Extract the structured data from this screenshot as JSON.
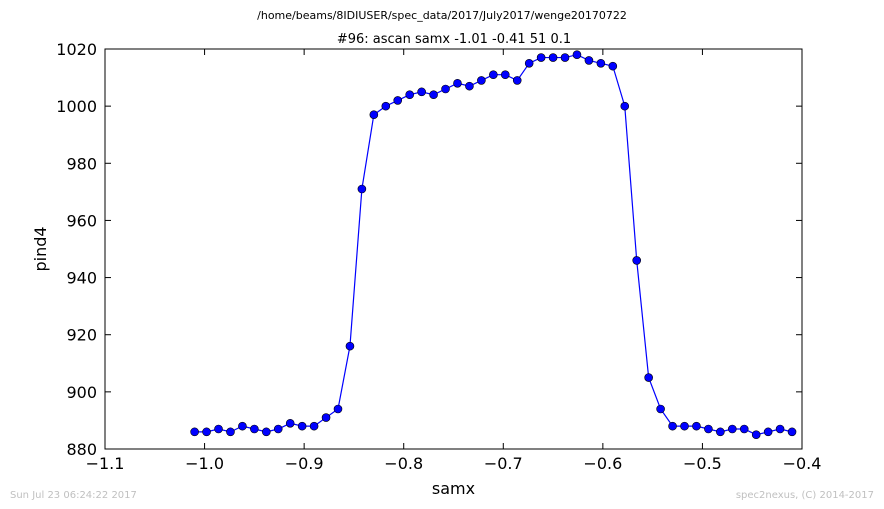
{
  "chart_data": {
    "type": "line",
    "source_path": "/home/beams/8IDIUSER/spec_data/2017/July2017/wenge20170722",
    "title": "#96: ascan  samx -1.01 -0.41  51 0.1",
    "xlabel": "samx",
    "ylabel": "pind4",
    "xlim": [
      -1.1,
      -0.4
    ],
    "ylim": [
      880,
      1020
    ],
    "xticks": [
      -1.1,
      -1.0,
      -0.9,
      -0.8,
      -0.7,
      -0.6,
      -0.5,
      -0.4
    ],
    "xtick_labels": [
      "−1.1",
      "−1.0",
      "−0.9",
      "−0.8",
      "−0.7",
      "−0.6",
      "−0.5",
      "−0.4"
    ],
    "yticks": [
      880,
      900,
      920,
      940,
      960,
      980,
      1000,
      1020
    ],
    "ytick_labels": [
      "880",
      "900",
      "920",
      "940",
      "960",
      "980",
      "1000",
      "1020"
    ],
    "grid": false,
    "series": [
      {
        "color": "#0000ff",
        "marker": "circle",
        "x": [
          -1.01,
          -0.998,
          -0.986,
          -0.974,
          -0.962,
          -0.95,
          -0.938,
          -0.926,
          -0.914,
          -0.902,
          -0.89,
          -0.878,
          -0.866,
          -0.854,
          -0.842,
          -0.83,
          -0.818,
          -0.806,
          -0.794,
          -0.782,
          -0.77,
          -0.758,
          -0.746,
          -0.734,
          -0.722,
          -0.71,
          -0.698,
          -0.686,
          -0.674,
          -0.662,
          -0.65,
          -0.638,
          -0.626,
          -0.614,
          -0.602,
          -0.59,
          -0.578,
          -0.566,
          -0.554,
          -0.542,
          -0.53,
          -0.518,
          -0.506,
          -0.494,
          -0.482,
          -0.47,
          -0.458,
          -0.446,
          -0.434,
          -0.422,
          -0.41
        ],
        "y": [
          886,
          886,
          887,
          886,
          888,
          887,
          886,
          887,
          889,
          888,
          888,
          891,
          894,
          916,
          971,
          997,
          1000,
          1002,
          1004,
          1005,
          1004,
          1006,
          1008,
          1007,
          1009,
          1011,
          1011,
          1009,
          1015,
          1017,
          1017,
          1017,
          1018,
          1016,
          1015,
          1014,
          1000,
          946,
          905,
          894,
          888,
          888,
          888,
          887,
          886,
          887,
          887,
          885,
          886,
          887,
          886
        ]
      }
    ]
  },
  "footer": {
    "timestamp": "Sun Jul 23 06:24:22 2017",
    "credit": "spec2nexus, (C) 2014-2017"
  }
}
